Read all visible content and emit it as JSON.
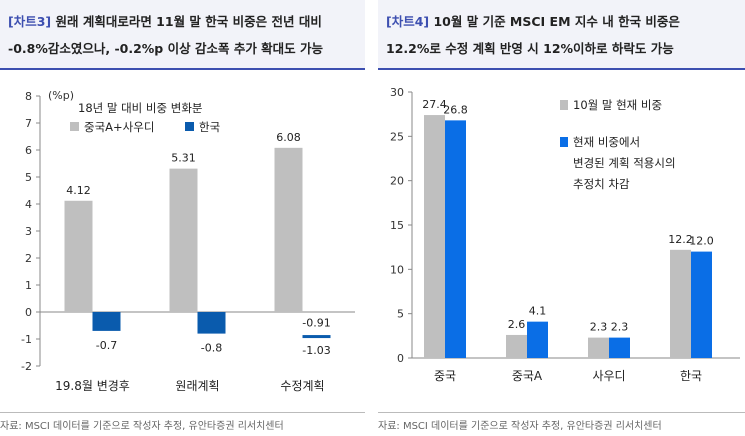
{
  "charts": [
    {
      "tag": "[차트3]",
      "title_line1": " 원래 계획대로라면 11월 말 한국 비중은 전년 대비",
      "title_line2": "-0.8%감소였으나, -0.2%p 이상 감소폭 추가 확대도 가능",
      "source": "자료: MSCI 데이터를 기준으로 작성자 추정, 유안타증권 리서치센터"
    },
    {
      "tag": "[차트4]",
      "title_line1": " 10월 말 기준 MSCI EM 지수 내 한국 비중은",
      "title_line2": "12.2%로 수정 계획 반영 시 12%이하로 하락도 가능",
      "source": "자료: MSCI 데이터를 기준으로 작성자 추정, 유안타증권 리서치센터"
    }
  ],
  "chart_data": [
    {
      "type": "bar",
      "unit_label": "(%p)",
      "subtitle": "18년 말 대비 비중 변화분",
      "categories": [
        "19.8월 변경후",
        "원래계획",
        "수정계획"
      ],
      "series": [
        {
          "name": "중국A+사우디",
          "color": "#bfbfbf",
          "values": [
            4.12,
            5.31,
            6.08
          ],
          "labels": [
            "4.12",
            "5.31",
            "6.08"
          ]
        },
        {
          "name": "한국",
          "color": "#0a5bad",
          "values": [
            -0.7,
            -0.8,
            -0.91
          ],
          "labels": [
            "-0.7",
            "-0.8",
            "-0.91"
          ]
        }
      ],
      "extra_marks": [
        {
          "category_index": 2,
          "value": -1.03,
          "label": "-1.03"
        }
      ],
      "ylim": [
        -2,
        8
      ],
      "yticks": [
        "-2",
        "-1",
        "0",
        "1",
        "2",
        "3",
        "4",
        "5",
        "6",
        "7",
        "8"
      ],
      "grid": false,
      "legend": "top-left"
    },
    {
      "type": "bar",
      "categories": [
        "중국",
        "중국A",
        "사우디",
        "한국"
      ],
      "series": [
        {
          "name": "10월 말 현재 비중",
          "color": "#bfbfbf",
          "values": [
            27.4,
            2.6,
            2.3,
            12.2
          ],
          "labels": [
            "27.4",
            "2.6",
            "2.3",
            "12.2"
          ]
        },
        {
          "name": "현재 비중에서 변경된 계획 적용시의 추정치 차감",
          "name_lines": [
            "현재 비중에서",
            "변경된 계획 적용시의",
            "추정치 차감"
          ],
          "color": "#0a6ee6",
          "values": [
            26.8,
            4.1,
            2.3,
            12.0
          ],
          "labels": [
            "26.8",
            "4.1",
            "2.3",
            "12.0"
          ]
        }
      ],
      "ylim": [
        0,
        30
      ],
      "yticks": [
        "0",
        "5",
        "10",
        "15",
        "20",
        "25",
        "30"
      ],
      "grid": false,
      "legend": "top-right"
    }
  ]
}
